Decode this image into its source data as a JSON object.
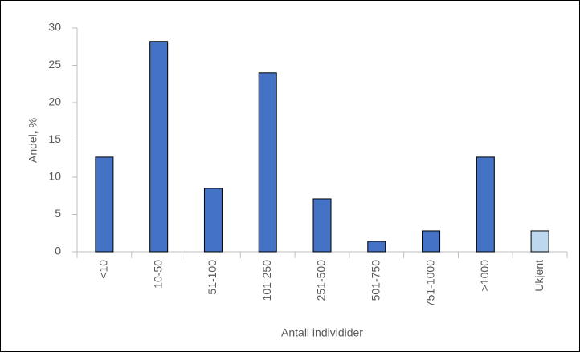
{
  "chart_data": {
    "type": "bar",
    "categories": [
      "<10",
      "10-50",
      "51-100",
      "101-250",
      "251-500",
      "501-750",
      "751-1000",
      ">1000",
      "Ukjent"
    ],
    "values": [
      12.7,
      28.2,
      8.5,
      24.0,
      7.1,
      1.4,
      2.8,
      12.7,
      2.8
    ],
    "colors": [
      "#4472c4",
      "#4472c4",
      "#4472c4",
      "#4472c4",
      "#4472c4",
      "#4472c4",
      "#4472c4",
      "#4472c4",
      "#bdd7ee"
    ],
    "x_label": "Antall individider",
    "y_label": "Andel, %",
    "ylim": [
      0,
      30
    ],
    "yticks": [
      0,
      5,
      10,
      15,
      20,
      25,
      30
    ],
    "grid": false
  }
}
